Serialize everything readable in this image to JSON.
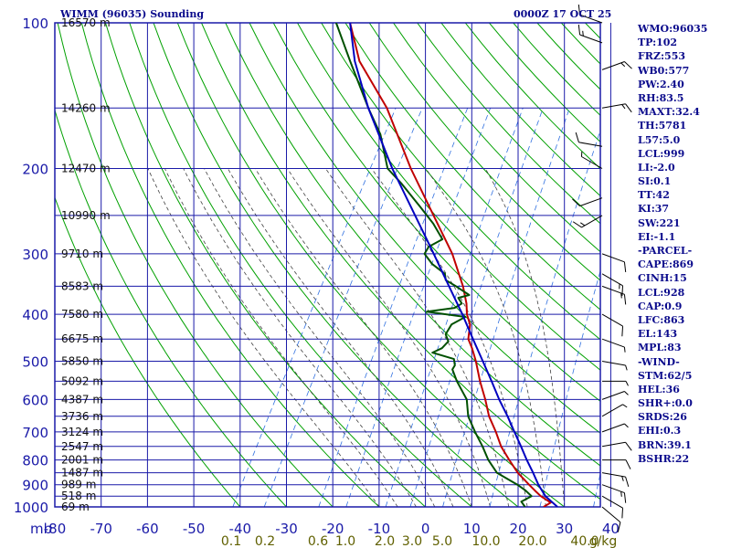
{
  "header": {
    "title": "WIMM (96035) Sounding",
    "datestamp": "0000Z 17 OCT 25"
  },
  "indices": [
    "WMO:96035",
    "TP:102",
    "FRZ:553",
    "WB0:577",
    "PW:2.40",
    "RH:83.5",
    "MAXT:32.4",
    "TH:5781",
    "L57:5.0",
    "LCL:999",
    "LI:-2.0",
    "SI:0.1",
    "TT:42",
    "KI:37",
    "SW:221",
    "EI:-1.1",
    "-PARCEL-",
    "CAPE:869",
    "CINH:15",
    "LCL:928",
    "CAP:0.9",
    "LFC:863",
    "EL:143",
    "MPL:83",
    "-WIND-",
    "STM:62/5",
    "HEL:36",
    "SHR+:0.0",
    "SRDS:26",
    "EHI:0.3",
    "BRN:39.1",
    "BSHR:22"
  ],
  "chart_data": {
    "type": "line",
    "title": "WIMM (96035) Sounding",
    "xlabel": "",
    "ylabel": "mb",
    "x_unit_label": "mb",
    "xlim": [
      -80,
      40
    ],
    "ylim": [
      1000,
      100
    ],
    "y_scale": "log-pressure",
    "pressure_ticks": [
      100,
      200,
      300,
      400,
      500,
      600,
      700,
      800,
      900,
      1000
    ],
    "temperature_ticks": [
      -80,
      -70,
      -60,
      -50,
      -40,
      -30,
      -20,
      -10,
      0,
      10,
      20,
      30,
      40
    ],
    "height_labels": [
      {
        "p": 100,
        "text": "16570 m"
      },
      {
        "p": 150,
        "text": "14260 m"
      },
      {
        "p": 200,
        "text": "12470 m"
      },
      {
        "p": 250,
        "text": "10990 m"
      },
      {
        "p": 300,
        "text": "9710 m"
      },
      {
        "p": 350,
        "text": "8583 m"
      },
      {
        "p": 400,
        "text": "7580 m"
      },
      {
        "p": 450,
        "text": "6675 m"
      },
      {
        "p": 500,
        "text": "5850 m"
      },
      {
        "p": 550,
        "text": "5092 m"
      },
      {
        "p": 600,
        "text": "4387 m"
      },
      {
        "p": 650,
        "text": "3736 m"
      },
      {
        "p": 700,
        "text": "3124 m"
      },
      {
        "p": 750,
        "text": "2547 m"
      },
      {
        "p": 800,
        "text": "2001 m"
      },
      {
        "p": 850,
        "text": "1487 m"
      },
      {
        "p": 900,
        "text": "989 m"
      },
      {
        "p": 950,
        "text": "518 m"
      },
      {
        "p": 1000,
        "text": "69 m"
      }
    ],
    "mixing_ratio_labels": [
      "0.1",
      "0.2",
      "0.6",
      "1.0",
      "2.0",
      "3.0",
      "5.0",
      "10.0",
      "20.0",
      "40.0",
      "g/kg"
    ],
    "series": [
      {
        "role": "environment-temperature",
        "color": "#c00000",
        "points": [
          [
            1000,
            25.5
          ],
          [
            980,
            26.5
          ],
          [
            950,
            23.5
          ],
          [
            925,
            21.5
          ],
          [
            900,
            19.5
          ],
          [
            850,
            15.5
          ],
          [
            800,
            12
          ],
          [
            750,
            8.5
          ],
          [
            700,
            5.5
          ],
          [
            650,
            2
          ],
          [
            600,
            -1
          ],
          [
            550,
            -4.5
          ],
          [
            500,
            -8
          ],
          [
            470,
            -10.5
          ],
          [
            450,
            -12.5
          ],
          [
            420,
            -14
          ],
          [
            400,
            -16
          ],
          [
            380,
            -17.5
          ],
          [
            350,
            -20.5
          ],
          [
            300,
            -27
          ],
          [
            250,
            -36
          ],
          [
            200,
            -47
          ],
          [
            150,
            -60
          ],
          [
            120,
            -72
          ],
          [
            100,
            -79
          ]
        ]
      },
      {
        "role": "environment-dewpoint",
        "color": "#005000",
        "points": [
          [
            1000,
            21.5
          ],
          [
            975,
            20
          ],
          [
            950,
            21.5
          ],
          [
            925,
            19.5
          ],
          [
            900,
            17
          ],
          [
            850,
            11
          ],
          [
            800,
            7.5
          ],
          [
            750,
            4.5
          ],
          [
            700,
            1
          ],
          [
            650,
            -2.5
          ],
          [
            600,
            -5
          ],
          [
            550,
            -9.5
          ],
          [
            520,
            -12
          ],
          [
            510,
            -12
          ],
          [
            495,
            -13
          ],
          [
            480,
            -18.5
          ],
          [
            470,
            -17
          ],
          [
            455,
            -16.5
          ],
          [
            440,
            -18
          ],
          [
            420,
            -18
          ],
          [
            405,
            -16
          ],
          [
            395,
            -25
          ],
          [
            388,
            -19.5
          ],
          [
            380,
            -18.5
          ],
          [
            370,
            -20
          ],
          [
            365,
            -18
          ],
          [
            350,
            -22
          ],
          [
            340,
            -25
          ],
          [
            330,
            -26
          ],
          [
            315,
            -30
          ],
          [
            300,
            -33
          ],
          [
            290,
            -33
          ],
          [
            280,
            -31
          ],
          [
            260,
            -35
          ],
          [
            240,
            -40
          ],
          [
            215,
            -47
          ],
          [
            200,
            -52
          ],
          [
            170,
            -58
          ],
          [
            150,
            -64
          ],
          [
            120,
            -74
          ],
          [
            100,
            -82
          ]
        ]
      },
      {
        "role": "parcel",
        "color": "#0000c0",
        "points": [
          [
            1000,
            28.5
          ],
          [
            950,
            24.5
          ],
          [
            900,
            21.5
          ],
          [
            850,
            18.8
          ],
          [
            800,
            15.8
          ],
          [
            750,
            12.8
          ],
          [
            700,
            9.5
          ],
          [
            650,
            6
          ],
          [
            600,
            2
          ],
          [
            550,
            -2
          ],
          [
            500,
            -6.5
          ],
          [
            450,
            -11.5
          ],
          [
            400,
            -17
          ],
          [
            350,
            -23.5
          ],
          [
            300,
            -31
          ],
          [
            250,
            -40
          ],
          [
            200,
            -51
          ],
          [
            150,
            -64
          ],
          [
            120,
            -73
          ],
          [
            100,
            -79
          ]
        ]
      }
    ],
    "wind_barbs": [
      {
        "p": 1000,
        "dir": 130,
        "spd": 10
      },
      {
        "p": 950,
        "dir": 120,
        "spd": 10
      },
      {
        "p": 900,
        "dir": 110,
        "spd": 15
      },
      {
        "p": 850,
        "dir": 100,
        "spd": 15
      },
      {
        "p": 800,
        "dir": 90,
        "spd": 10
      },
      {
        "p": 750,
        "dir": 80,
        "spd": 10
      },
      {
        "p": 700,
        "dir": 70,
        "spd": 5
      },
      {
        "p": 650,
        "dir": 60,
        "spd": 5
      },
      {
        "p": 600,
        "dir": 70,
        "spd": 5
      },
      {
        "p": 550,
        "dir": 90,
        "spd": 5
      },
      {
        "p": 500,
        "dir": 100,
        "spd": 5
      },
      {
        "p": 450,
        "dir": 110,
        "spd": 5
      },
      {
        "p": 400,
        "dir": 120,
        "spd": 10
      },
      {
        "p": 350,
        "dir": 110,
        "spd": 15
      },
      {
        "p": 330,
        "dir": 120,
        "spd": 15
      },
      {
        "p": 300,
        "dir": 110,
        "spd": 10
      },
      {
        "p": 250,
        "dir": 240,
        "spd": 15
      },
      {
        "p": 230,
        "dir": 250,
        "spd": 10
      },
      {
        "p": 200,
        "dir": 300,
        "spd": 5
      },
      {
        "p": 180,
        "dir": 280,
        "spd": 10
      },
      {
        "p": 150,
        "dir": 80,
        "spd": 15
      },
      {
        "p": 125,
        "dir": 70,
        "spd": 15
      },
      {
        "p": 110,
        "dir": 290,
        "spd": 15
      },
      {
        "p": 100,
        "dir": 290,
        "spd": 10
      }
    ],
    "grid": true,
    "colors": {
      "frame": "#1a1aa8",
      "axis_text": "#1a1aa8",
      "height_text": "#101010",
      "mixing_text": "#606000",
      "dry_adiabat": "#00a000",
      "moist_adiabat": "#404040",
      "mixing_ratio": "#3070e0",
      "barb": "#000000"
    }
  }
}
